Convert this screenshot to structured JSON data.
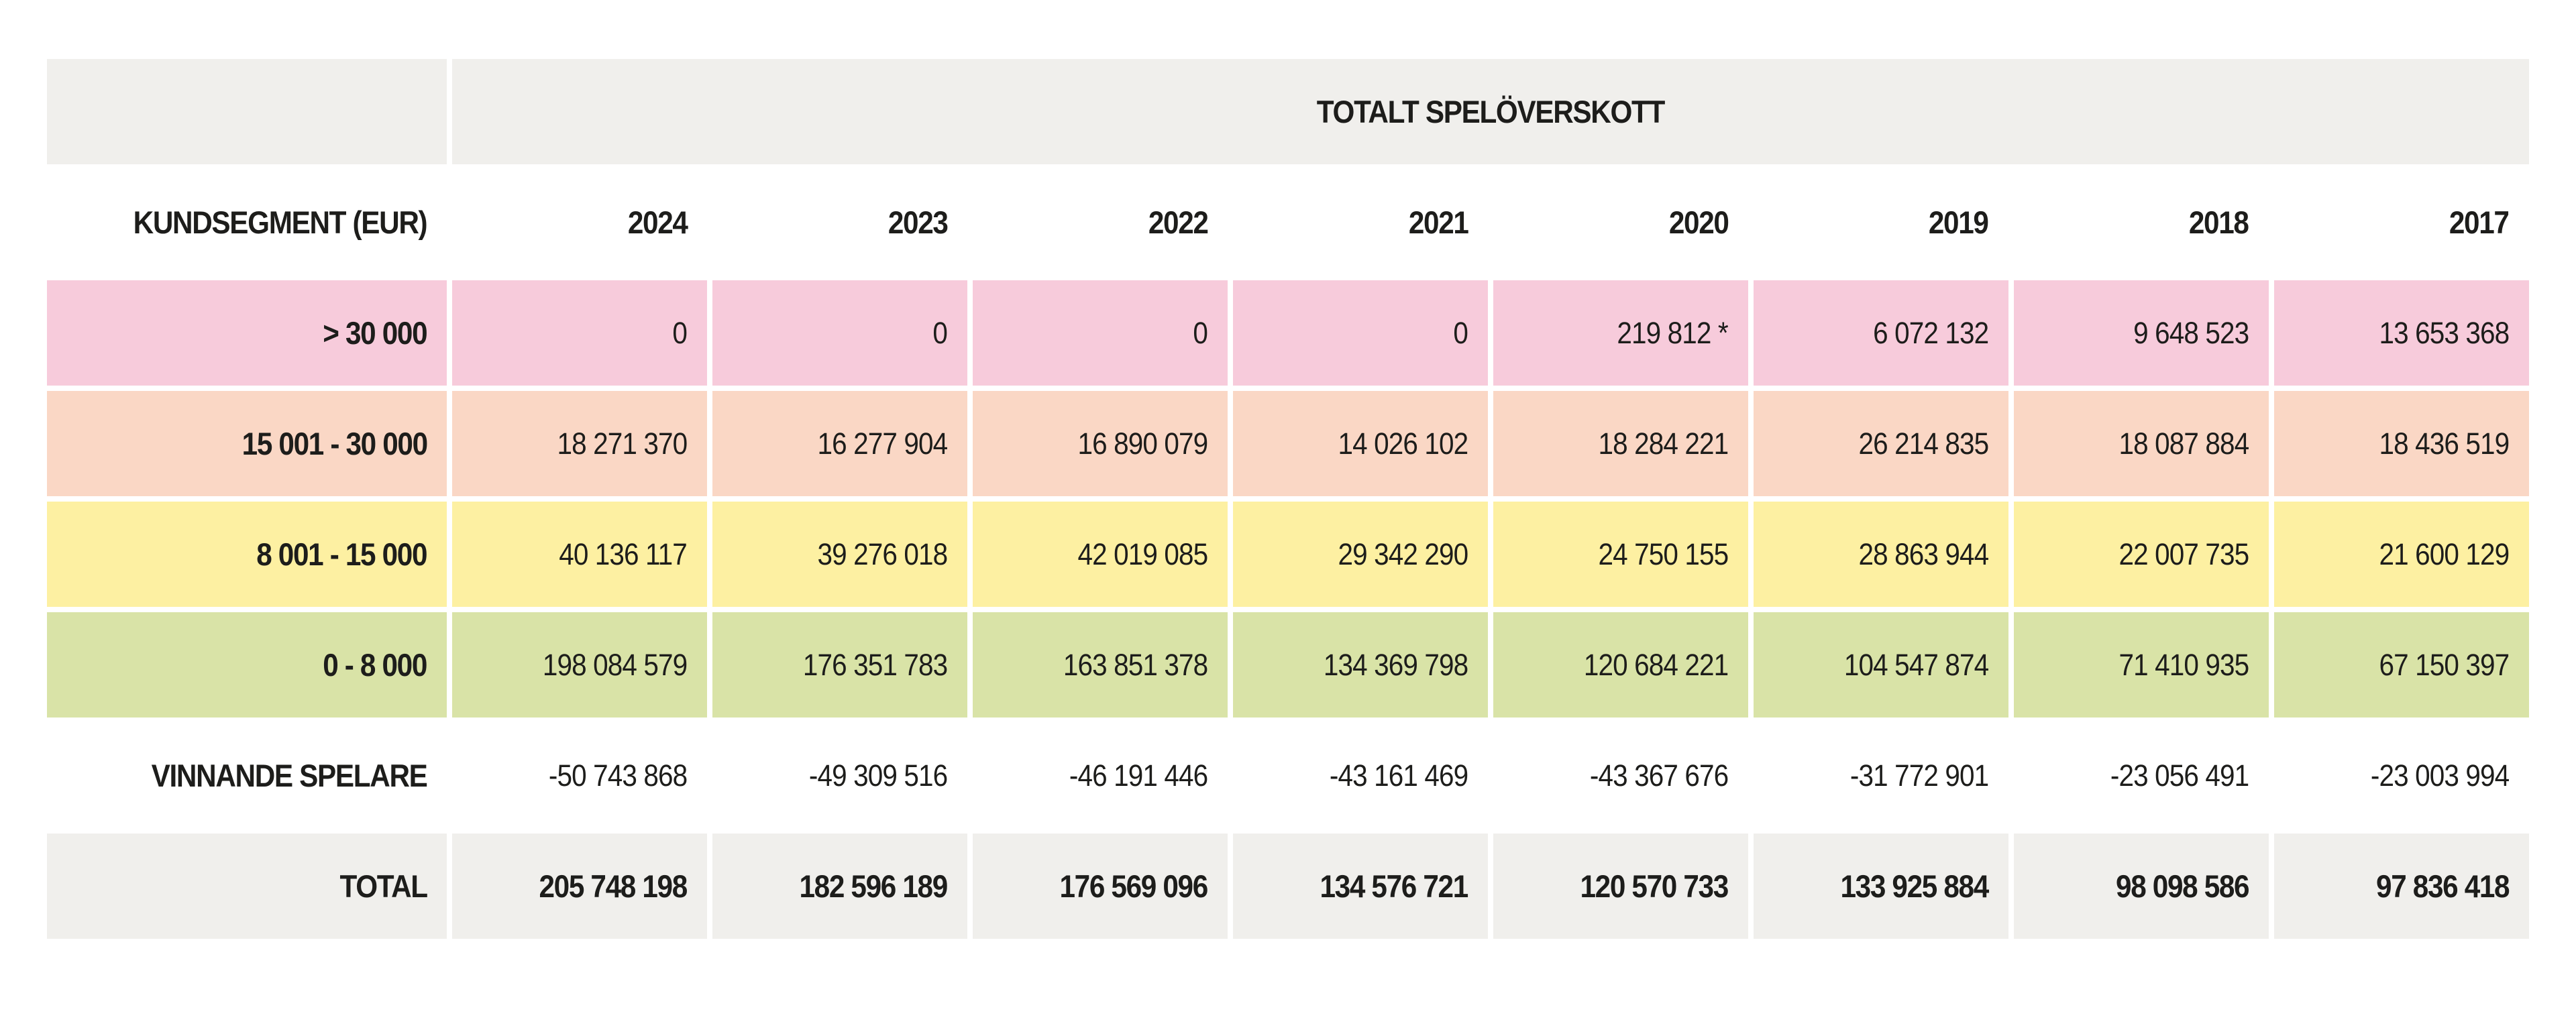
{
  "page": {
    "background": "#ffffff",
    "text_color": "#1d1d1b",
    "header_bg": "#f0efec"
  },
  "table": {
    "title": "TOTALT SPELÖVERSKOTT",
    "corner_label": "KUNDSEGMENT (EUR)",
    "years": [
      "2024",
      "2023",
      "2022",
      "2021",
      "2020",
      "2019",
      "2018",
      "2017"
    ],
    "rows": [
      {
        "label": "> 30 000",
        "color": "#f7cbdb",
        "bold_values": false,
        "values": [
          "0",
          "0",
          "0",
          "0",
          "219 812 *",
          "6 072 132",
          "9 648 523",
          "13 653 368"
        ]
      },
      {
        "label": "15 001 - 30 000",
        "color": "#fad7c5",
        "bold_values": false,
        "values": [
          "18 271 370",
          "16 277 904",
          "16 890 079",
          "14 026 102",
          "18 284 221",
          "26 214 835",
          "18 087 884",
          "18 436 519"
        ]
      },
      {
        "label": "8 001 - 15 000",
        "color": "#fdf0a2",
        "bold_values": false,
        "values": [
          "40 136 117",
          "39 276 018",
          "42 019 085",
          "29 342 290",
          "24 750 155",
          "28 863 944",
          "22 007 735",
          "21 600 129"
        ]
      },
      {
        "label": "0 - 8 000",
        "color": "#d9e3a7",
        "bold_values": false,
        "values": [
          "198 084 579",
          "176 351 783",
          "163 851 378",
          "134 369 798",
          "120 684 221",
          "104 547 874",
          "71 410 935",
          "67 150 397"
        ]
      },
      {
        "label": "VINNANDE SPELARE",
        "color": "#ffffff",
        "bold_values": false,
        "values": [
          "-50 743 868",
          "-49 309 516",
          "-46 191 446",
          "-43 161 469",
          "-43 367 676",
          "-31 772 901",
          "-23 056 491",
          "-23 003 994"
        ]
      },
      {
        "label": "TOTAL",
        "color": "#f0efec",
        "bold_values": true,
        "values": [
          "205 748 198",
          "182 596 189",
          "176 569 096",
          "134 576 721",
          "120 570 733",
          "133 925 884",
          "98 098 586",
          "97 836 418"
        ]
      }
    ]
  },
  "chart_data": {
    "type": "table",
    "title": "TOTALT SPELÖVERSKOTT",
    "row_header_label": "KUNDSEGMENT (EUR)",
    "categories": [
      2024,
      2023,
      2022,
      2021,
      2020,
      2019,
      2018,
      2017
    ],
    "series": [
      {
        "name": "> 30 000",
        "values": [
          0,
          0,
          0,
          0,
          219812,
          6072132,
          9648523,
          13653368
        ],
        "note": "2020 value marked with *",
        "color": "#f7cbdb"
      },
      {
        "name": "15 001 - 30 000",
        "values": [
          18271370,
          16277904,
          16890079,
          14026102,
          18284221,
          26214835,
          18087884,
          18436519
        ],
        "color": "#fad7c5"
      },
      {
        "name": "8 001 - 15 000",
        "values": [
          40136117,
          39276018,
          42019085,
          29342290,
          24750155,
          28863944,
          22007735,
          21600129
        ],
        "color": "#fdf0a2"
      },
      {
        "name": "0 - 8 000",
        "values": [
          198084579,
          176351783,
          163851378,
          134369798,
          120684221,
          104547874,
          71410935,
          67150397
        ],
        "color": "#d9e3a7"
      },
      {
        "name": "VINNANDE SPELARE",
        "values": [
          -50743868,
          -49309516,
          -46191446,
          -43161469,
          -43367676,
          -31772901,
          -23056491,
          -23003994
        ],
        "color": "#ffffff"
      },
      {
        "name": "TOTAL",
        "values": [
          205748198,
          182596189,
          176569096,
          134576721,
          120570733,
          133925884,
          98098586,
          97836418
        ],
        "color": "#f0efec",
        "is_total": true
      }
    ],
    "unit": "EUR",
    "layout": {
      "grid": false,
      "legend": "none",
      "value_alignment": "right"
    }
  }
}
